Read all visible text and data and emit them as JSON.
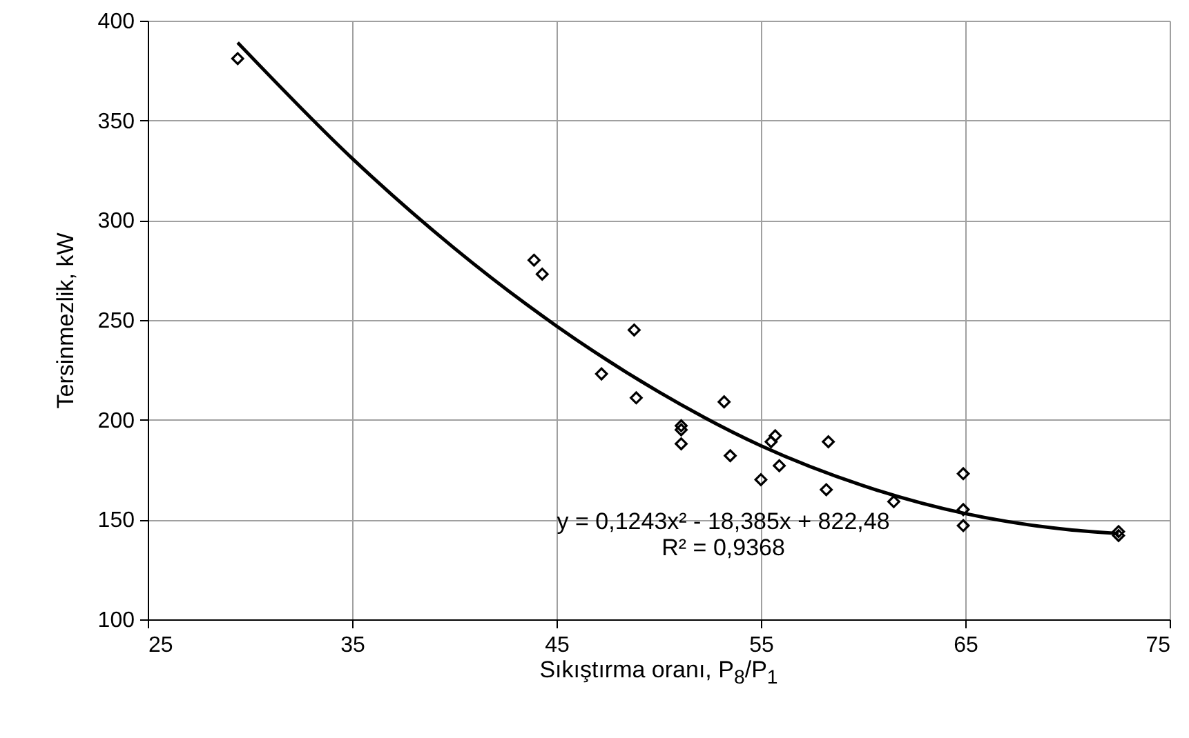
{
  "chart_data": {
    "type": "scatter",
    "xlabel": "Sıkıştırma  oranı, P$_{8}$/P$_{1}$",
    "ylabel": "Tersinmezlik, kW",
    "xlim": [
      25,
      75
    ],
    "xticks": [
      25,
      35,
      45,
      55,
      65,
      75
    ],
    "ylim": [
      100,
      400
    ],
    "yticks": [
      100,
      150,
      200,
      250,
      300,
      350,
      400
    ],
    "grid": true,
    "marker": "diamond",
    "series": [
      {
        "color": "#000000",
        "x": [
          29.4,
          43.9,
          44.3,
          48.8,
          47.2,
          48.9,
          51.1,
          51.1,
          51.1,
          53.2,
          53.5,
          55.0,
          55.7,
          55.5,
          55.9,
          58.3,
          58.2,
          61.5,
          64.9,
          64.9,
          64.9,
          72.5,
          72.5
        ],
        "values": [
          381,
          280,
          273,
          245,
          223,
          211,
          197,
          195,
          188,
          209,
          182,
          170,
          192,
          189,
          177,
          189,
          165,
          159,
          173,
          155,
          147,
          144,
          142
        ]
      },
      {
        "type": "line",
        "color": "#000000",
        "marker": "none",
        "x": [
          29.4,
          35,
          40,
          45,
          50,
          55,
          60,
          65,
          70,
          72.5
        ],
        "values": [
          389,
          331,
          286,
          247,
          214,
          187,
          167,
          153,
          145,
          143
        ]
      }
    ],
    "annotations": [
      "y = 0,1243x² - 18,385x + 822,48",
      "R² = 0,9368"
    ]
  }
}
